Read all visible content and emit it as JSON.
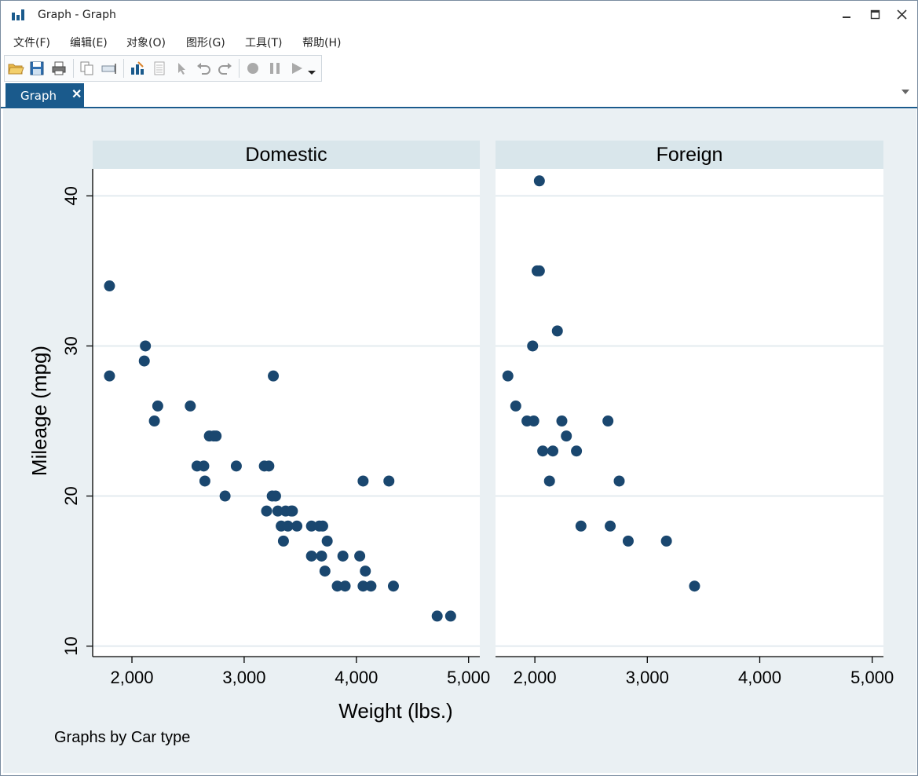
{
  "window": {
    "title": "Graph - Graph"
  },
  "menu": [
    "文件(F)",
    "编辑(E)",
    "对象(O)",
    "图形(G)",
    "工具(T)",
    "帮助(H)"
  ],
  "toolbar": {
    "icons": [
      "open-folder-icon",
      "save-icon",
      "print-icon",
      "copy-icon",
      "rename-icon",
      "graph-editor-icon",
      "table-icon",
      "pointer-icon",
      "undo-icon",
      "redo-icon",
      "record-icon",
      "pause-icon",
      "play-icon",
      "dropdown-icon"
    ]
  },
  "tab": {
    "label": "Graph",
    "close": "✕"
  },
  "colors": {
    "marker": "#1a476f",
    "panel_header": "#d9e6eb",
    "outer_bg": "#eaf0f3",
    "tab": "#1a5a8c"
  },
  "chart_data": {
    "type": "scatter",
    "xlabel": "Weight (lbs.)",
    "ylabel": "Mileage (mpg)",
    "note": "Graphs by Car type",
    "xlim": [
      1650,
      5100
    ],
    "ylim": [
      9.3,
      41.8
    ],
    "xticks": [
      2000,
      3000,
      4000,
      5000
    ],
    "xtick_labels": [
      "2,000",
      "3,000",
      "4,000",
      "5,000"
    ],
    "yticks": [
      10,
      20,
      30,
      40
    ],
    "ytick_labels": [
      "10",
      "20",
      "30",
      "40"
    ],
    "grid": "horizontal",
    "panels": [
      {
        "name": "Domestic",
        "points": [
          [
            1800,
            34
          ],
          [
            1800,
            28
          ],
          [
            2110,
            29
          ],
          [
            2120,
            30
          ],
          [
            2200,
            25
          ],
          [
            2230,
            26
          ],
          [
            2520,
            26
          ],
          [
            2580,
            22
          ],
          [
            2640,
            22
          ],
          [
            2650,
            21
          ],
          [
            2690,
            24
          ],
          [
            2730,
            24
          ],
          [
            2750,
            24
          ],
          [
            2830,
            20
          ],
          [
            2930,
            22
          ],
          [
            3180,
            22
          ],
          [
            3200,
            19
          ],
          [
            3220,
            22
          ],
          [
            3250,
            20
          ],
          [
            3260,
            28
          ],
          [
            3280,
            20
          ],
          [
            3300,
            19
          ],
          [
            3330,
            18
          ],
          [
            3350,
            17
          ],
          [
            3370,
            19
          ],
          [
            3390,
            18
          ],
          [
            3420,
            19
          ],
          [
            3430,
            19
          ],
          [
            3470,
            18
          ],
          [
            3600,
            18
          ],
          [
            3600,
            16
          ],
          [
            3670,
            18
          ],
          [
            3690,
            16
          ],
          [
            3700,
            18
          ],
          [
            3720,
            15
          ],
          [
            3740,
            17
          ],
          [
            3830,
            14
          ],
          [
            3880,
            16
          ],
          [
            3900,
            14
          ],
          [
            4030,
            16
          ],
          [
            4060,
            21
          ],
          [
            4060,
            14
          ],
          [
            4080,
            15
          ],
          [
            4130,
            14
          ],
          [
            4290,
            21
          ],
          [
            4330,
            14
          ],
          [
            4720,
            12
          ],
          [
            4840,
            12
          ]
        ]
      },
      {
        "name": "Foreign",
        "points": [
          [
            1760,
            28
          ],
          [
            1830,
            26
          ],
          [
            1930,
            25
          ],
          [
            1980,
            30
          ],
          [
            1990,
            25
          ],
          [
            2020,
            35
          ],
          [
            2040,
            41
          ],
          [
            2040,
            35
          ],
          [
            2070,
            23
          ],
          [
            2130,
            21
          ],
          [
            2160,
            23
          ],
          [
            2200,
            31
          ],
          [
            2240,
            25
          ],
          [
            2280,
            24
          ],
          [
            2370,
            23
          ],
          [
            2410,
            18
          ],
          [
            2650,
            25
          ],
          [
            2670,
            18
          ],
          [
            2750,
            21
          ],
          [
            2830,
            17
          ],
          [
            3170,
            17
          ],
          [
            3420,
            14
          ]
        ]
      }
    ]
  }
}
